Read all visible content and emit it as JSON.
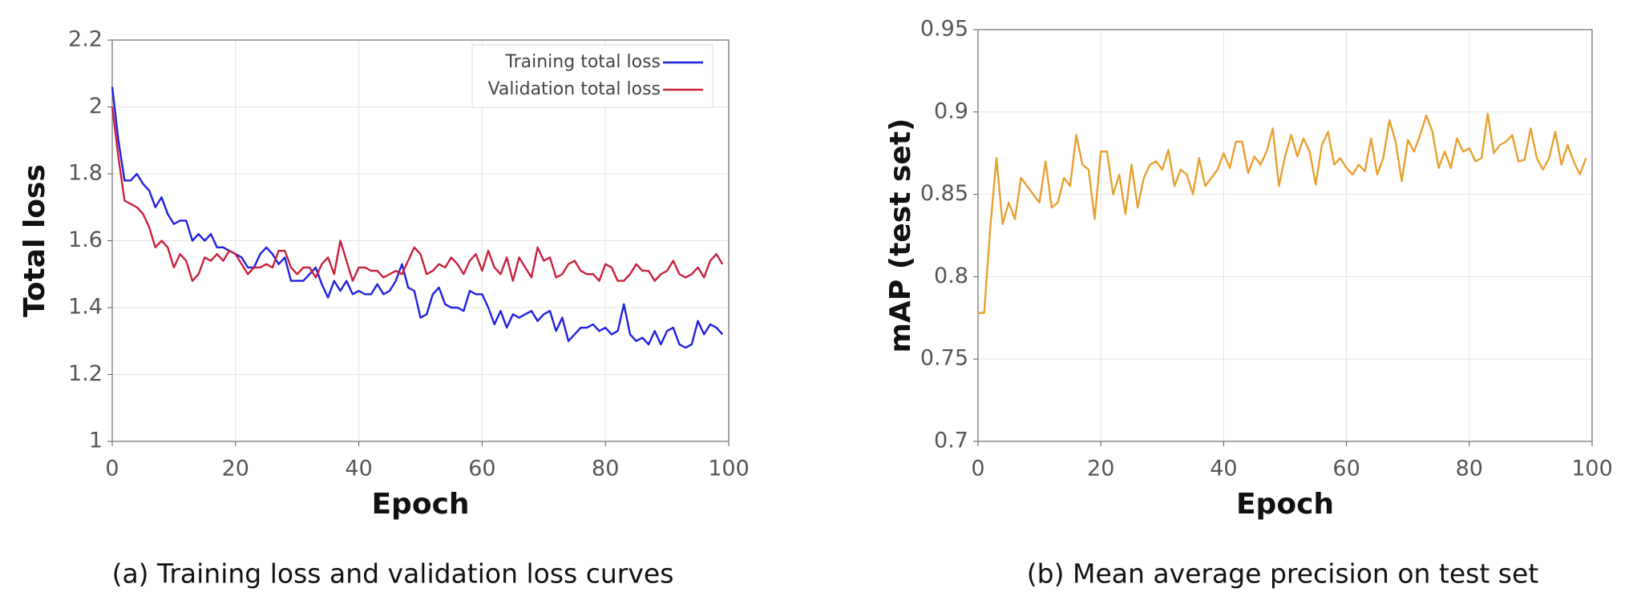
{
  "chart_data": [
    {
      "type": "line",
      "caption": "(a) Training loss and validation loss curves",
      "xlabel": "Epoch",
      "ylabel": "Total loss",
      "x": [
        0,
        1,
        2,
        3,
        4,
        5,
        6,
        7,
        8,
        9,
        10,
        11,
        12,
        13,
        14,
        15,
        16,
        17,
        18,
        19,
        20,
        21,
        22,
        23,
        24,
        25,
        26,
        27,
        28,
        29,
        30,
        31,
        32,
        33,
        34,
        35,
        36,
        37,
        38,
        39,
        40,
        41,
        42,
        43,
        44,
        45,
        46,
        47,
        48,
        49,
        50,
        51,
        52,
        53,
        54,
        55,
        56,
        57,
        58,
        59,
        60,
        61,
        62,
        63,
        64,
        65,
        66,
        67,
        68,
        69,
        70,
        71,
        72,
        73,
        74,
        75,
        76,
        77,
        78,
        79,
        80,
        81,
        82,
        83,
        84,
        85,
        86,
        87,
        88,
        89,
        90,
        91,
        92,
        93,
        94,
        95,
        96,
        97,
        98,
        99
      ],
      "series": [
        {
          "name": "Training total loss",
          "color": "#1f1fe0",
          "values": [
            2.06,
            1.9,
            1.78,
            1.78,
            1.8,
            1.77,
            1.75,
            1.7,
            1.73,
            1.68,
            1.65,
            1.66,
            1.66,
            1.6,
            1.62,
            1.6,
            1.62,
            1.58,
            1.58,
            1.57,
            1.56,
            1.55,
            1.52,
            1.52,
            1.56,
            1.58,
            1.56,
            1.53,
            1.55,
            1.48,
            1.48,
            1.48,
            1.5,
            1.52,
            1.47,
            1.43,
            1.48,
            1.45,
            1.48,
            1.44,
            1.45,
            1.44,
            1.44,
            1.47,
            1.44,
            1.45,
            1.48,
            1.53,
            1.46,
            1.45,
            1.37,
            1.38,
            1.44,
            1.46,
            1.41,
            1.4,
            1.4,
            1.39,
            1.45,
            1.44,
            1.44,
            1.4,
            1.35,
            1.39,
            1.34,
            1.38,
            1.37,
            1.38,
            1.39,
            1.36,
            1.38,
            1.39,
            1.33,
            1.37,
            1.3,
            1.32,
            1.34,
            1.34,
            1.35,
            1.33,
            1.34,
            1.32,
            1.33,
            1.41,
            1.32,
            1.3,
            1.31,
            1.29,
            1.33,
            1.29,
            1.33,
            1.34,
            1.29,
            1.28,
            1.29,
            1.36,
            1.32,
            1.35,
            1.34,
            1.32
          ]
        },
        {
          "name": "Validation total loss",
          "color": "#c8203c",
          "values": [
            2.0,
            1.85,
            1.72,
            1.71,
            1.7,
            1.68,
            1.64,
            1.58,
            1.6,
            1.58,
            1.52,
            1.56,
            1.54,
            1.48,
            1.5,
            1.55,
            1.54,
            1.56,
            1.54,
            1.57,
            1.56,
            1.53,
            1.5,
            1.52,
            1.52,
            1.53,
            1.52,
            1.57,
            1.57,
            1.52,
            1.5,
            1.52,
            1.52,
            1.49,
            1.53,
            1.55,
            1.5,
            1.6,
            1.54,
            1.48,
            1.52,
            1.52,
            1.51,
            1.51,
            1.49,
            1.5,
            1.51,
            1.5,
            1.54,
            1.58,
            1.56,
            1.5,
            1.51,
            1.53,
            1.52,
            1.55,
            1.53,
            1.5,
            1.54,
            1.56,
            1.51,
            1.57,
            1.52,
            1.5,
            1.55,
            1.48,
            1.55,
            1.52,
            1.49,
            1.58,
            1.54,
            1.55,
            1.49,
            1.5,
            1.53,
            1.54,
            1.51,
            1.5,
            1.5,
            1.48,
            1.53,
            1.52,
            1.48,
            1.48,
            1.5,
            1.53,
            1.51,
            1.51,
            1.48,
            1.5,
            1.51,
            1.54,
            1.5,
            1.49,
            1.5,
            1.52,
            1.49,
            1.54,
            1.56,
            1.53
          ]
        }
      ],
      "xlim": [
        0,
        100
      ],
      "xticks": [
        0,
        20,
        40,
        60,
        80,
        100
      ],
      "ylim": [
        1,
        2.2
      ],
      "yticks": [
        1,
        1.2,
        1.4,
        1.6,
        1.8,
        2,
        2.2
      ],
      "grid": true,
      "legend": "upper right"
    },
    {
      "type": "line",
      "caption": "(b) Mean average precision on test set",
      "xlabel": "Epoch",
      "ylabel": "mAP (test set)",
      "x": [
        0,
        1,
        2,
        3,
        4,
        5,
        6,
        7,
        8,
        9,
        10,
        11,
        12,
        13,
        14,
        15,
        16,
        17,
        18,
        19,
        20,
        21,
        22,
        23,
        24,
        25,
        26,
        27,
        28,
        29,
        30,
        31,
        32,
        33,
        34,
        35,
        36,
        37,
        38,
        39,
        40,
        41,
        42,
        43,
        44,
        45,
        46,
        47,
        48,
        49,
        50,
        51,
        52,
        53,
        54,
        55,
        56,
        57,
        58,
        59,
        60,
        61,
        62,
        63,
        64,
        65,
        66,
        67,
        68,
        69,
        70,
        71,
        72,
        73,
        74,
        75,
        76,
        77,
        78,
        79,
        80,
        81,
        82,
        83,
        84,
        85,
        86,
        87,
        88,
        89,
        90,
        91,
        92,
        93,
        94,
        95,
        96,
        97,
        98,
        99
      ],
      "series": [
        {
          "color": "#e8a030",
          "values": [
            0.778,
            0.778,
            0.83,
            0.872,
            0.832,
            0.845,
            0.835,
            0.86,
            0.855,
            0.85,
            0.845,
            0.87,
            0.842,
            0.845,
            0.86,
            0.855,
            0.886,
            0.868,
            0.865,
            0.835,
            0.876,
            0.876,
            0.85,
            0.862,
            0.838,
            0.868,
            0.842,
            0.86,
            0.868,
            0.87,
            0.865,
            0.877,
            0.855,
            0.865,
            0.862,
            0.85,
            0.872,
            0.855,
            0.86,
            0.865,
            0.875,
            0.866,
            0.882,
            0.882,
            0.863,
            0.873,
            0.868,
            0.876,
            0.89,
            0.855,
            0.873,
            0.886,
            0.873,
            0.884,
            0.876,
            0.856,
            0.88,
            0.888,
            0.868,
            0.872,
            0.866,
            0.862,
            0.868,
            0.864,
            0.884,
            0.862,
            0.872,
            0.895,
            0.882,
            0.858,
            0.883,
            0.876,
            0.886,
            0.898,
            0.888,
            0.866,
            0.876,
            0.866,
            0.884,
            0.876,
            0.878,
            0.87,
            0.872,
            0.899,
            0.875,
            0.88,
            0.882,
            0.886,
            0.87,
            0.871,
            0.89,
            0.872,
            0.865,
            0.872,
            0.888,
            0.868,
            0.88,
            0.87,
            0.862,
            0.872
          ]
        }
      ],
      "xlim": [
        0,
        100
      ],
      "xticks": [
        0,
        20,
        40,
        60,
        80,
        100
      ],
      "ylim": [
        0.7,
        0.95
      ],
      "yticks": [
        0.7,
        0.75,
        0.8,
        0.85,
        0.9,
        0.95
      ],
      "grid": true
    }
  ]
}
